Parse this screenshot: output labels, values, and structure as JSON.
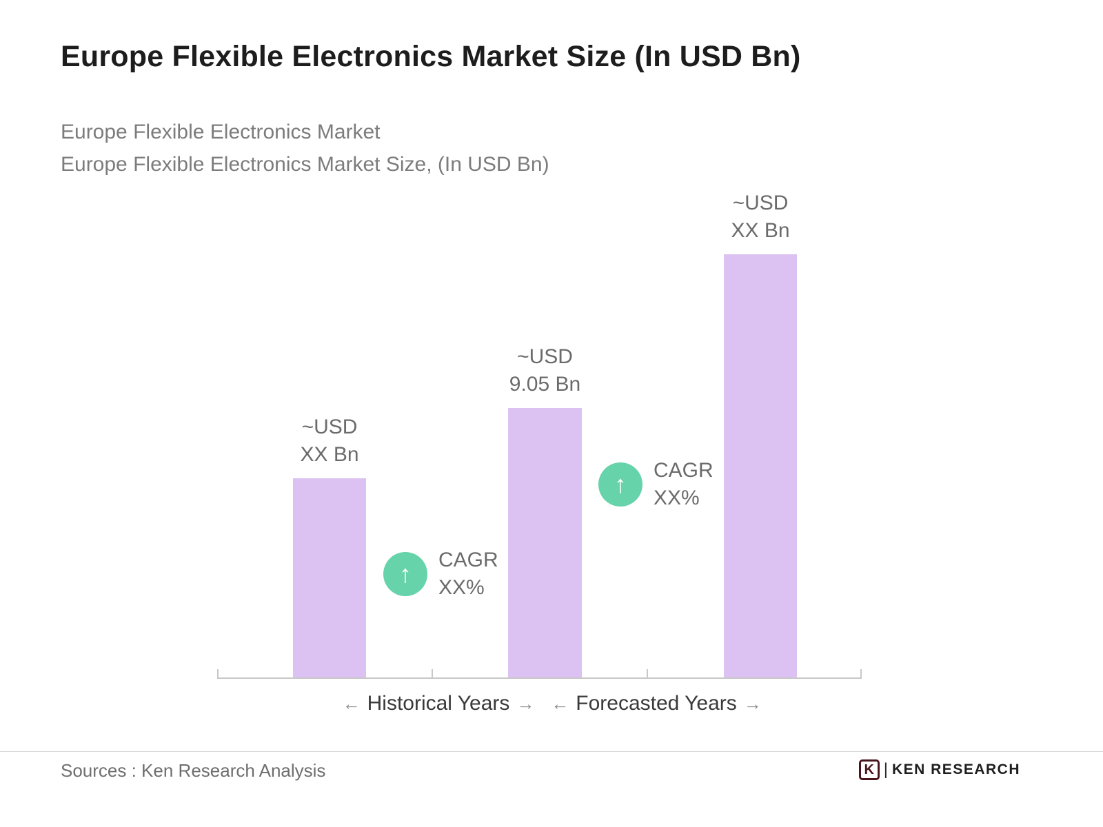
{
  "title": "Europe Flexible Electronics Market Size (In USD Bn)",
  "subtitle_line1": "Europe Flexible Electronics Market",
  "subtitle_line2": "Europe Flexible Electronics Market Size, (In USD Bn)",
  "chart_data": {
    "type": "bar",
    "title": "Europe Flexible Electronics Market Size (In USD Bn)",
    "values": [
      6.7,
      9.05,
      14.2
    ],
    "value_labels": [
      "~USD XX Bn",
      "~USD 9.05 Bn",
      "~USD XX Bn"
    ],
    "x_axis_groups": [
      "Historical Years",
      "Forecasted Years"
    ],
    "annotations": [
      "CAGR XX%",
      "CAGR XX%"
    ],
    "ylim": [
      0,
      16
    ],
    "grid": false,
    "legend": false,
    "bar_color": "#dcc2f2",
    "cagr_circle_color": "#67d3aa"
  },
  "chart": {
    "bar_labels": [
      {
        "line1": "~USD",
        "line2": "XX Bn"
      },
      {
        "line1": "~USD",
        "line2": "9.05 Bn"
      },
      {
        "line1": "~USD",
        "line2": "XX Bn"
      }
    ],
    "cagr": [
      {
        "line1": "CAGR",
        "line2": "XX%"
      },
      {
        "line1": "CAGR",
        "line2": "XX%"
      }
    ],
    "cagr_icon_glyph": "↑",
    "axis_groups": [
      {
        "arrow_left": "←",
        "label": "Historical Years",
        "arrow_right": "→"
      },
      {
        "arrow_left": "←",
        "label": "Forecasted Years",
        "arrow_right": "→"
      }
    ]
  },
  "footer": {
    "sources": "Sources : Ken Research Analysis",
    "logo_letter": "K",
    "logo_separator": "|",
    "logo_text": "KEN RESEARCH"
  }
}
